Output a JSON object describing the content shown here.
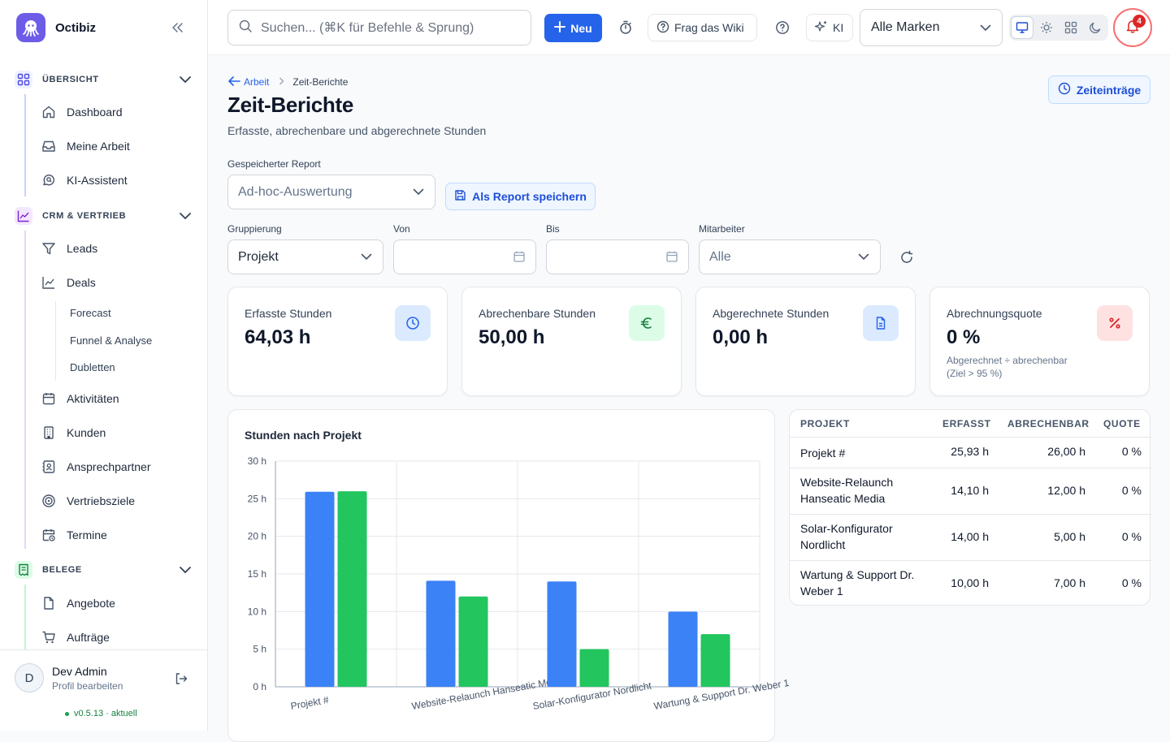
{
  "app": {
    "name": "Octibiz"
  },
  "sidebar": {
    "sections": [
      {
        "label": "ÜBERSICHT",
        "items": [
          {
            "label": "Dashboard",
            "icon": "home-icon"
          },
          {
            "label": "Meine Arbeit",
            "icon": "inbox-icon"
          },
          {
            "label": "KI-Assistent",
            "icon": "chat-search-icon"
          }
        ]
      },
      {
        "label": "CRM & VERTRIEB",
        "items": [
          {
            "label": "Leads",
            "icon": "filter-icon"
          },
          {
            "label": "Deals",
            "icon": "trend-icon"
          },
          {
            "label": "Aktivitäten",
            "icon": "calendar-icon"
          },
          {
            "label": "Kunden",
            "icon": "building-icon"
          },
          {
            "label": "Ansprechpartner",
            "icon": "contact-icon"
          },
          {
            "label": "Vertriebsziele",
            "icon": "target-icon"
          },
          {
            "label": "Termine",
            "icon": "calendar-clock-icon"
          }
        ],
        "deal_subitems": [
          "Forecast",
          "Funnel & Analyse",
          "Dubletten"
        ]
      },
      {
        "label": "BELEGE",
        "items": [
          {
            "label": "Angebote",
            "icon": "document-icon"
          },
          {
            "label": "Aufträge",
            "icon": "cart-icon"
          }
        ]
      }
    ],
    "user": {
      "name": "Dev Admin",
      "subtitle": "Profil bearbeiten",
      "initial": "D"
    },
    "version": "v0.5.13 · aktuell"
  },
  "topbar": {
    "search_placeholder": "Suchen... (⌘K für Befehle & Sprung)",
    "new_label": "Neu",
    "wiki_label": "Frag das Wiki",
    "ai_label": "KI",
    "brand_filter": "Alle Marken",
    "notifications_count": "4"
  },
  "page": {
    "breadcrumb_parent": "Arbeit",
    "breadcrumb_current": "Zeit-Berichte",
    "title": "Zeit-Berichte",
    "subtitle": "Erfasste, abrechenbare und abgerechnete Stunden",
    "time_entries_button": "Zeiteinträge"
  },
  "filters": {
    "saved_report_label": "Gespeicherter Report",
    "saved_report_value": "Ad-hoc-Auswertung",
    "save_report_button": "Als Report speichern",
    "grouping_label": "Gruppierung",
    "grouping_value": "Projekt",
    "from_label": "Von",
    "from_value": "",
    "to_label": "Bis",
    "to_value": "",
    "employee_label": "Mitarbeiter",
    "employee_value": "Alle"
  },
  "kpis": [
    {
      "title": "Erfasste Stunden",
      "value": "64,03 h",
      "sub": "",
      "icon": "clock-icon"
    },
    {
      "title": "Abrechenbare Stunden",
      "value": "50,00 h",
      "sub": "",
      "icon": "euro-icon"
    },
    {
      "title": "Abgerechnete Stunden",
      "value": "0,00 h",
      "sub": "",
      "icon": "document-icon"
    },
    {
      "title": "Abrechnungsquote",
      "value": "0 %",
      "sub": "Abgerechnet ÷ abrechenbar (Ziel > 95 %)",
      "icon": "percent-icon"
    }
  ],
  "chart_title": "Stunden nach Projekt",
  "chart_data": {
    "type": "bar",
    "title": "Stunden nach Projekt",
    "categories": [
      "Projekt #",
      "Website-Relaunch Hanseatic Media",
      "Solar-Konfigurator Nordlicht",
      "Wartung & Support Dr. Weber 1"
    ],
    "series": [
      {
        "values": [
          25.93,
          14.1,
          14.0,
          10.0
        ],
        "color": "#3b82f6"
      },
      {
        "values": [
          26.0,
          12.0,
          5.0,
          7.0
        ],
        "color": "#22c55e"
      }
    ],
    "ylim": [
      0,
      30
    ],
    "yticks": [
      "0 h",
      "5 h",
      "10 h",
      "15 h",
      "20 h",
      "25 h",
      "30 h"
    ],
    "grid": true
  },
  "table": {
    "headers": [
      "PROJEKT",
      "ERFASST",
      "ABRECHENBAR",
      "QUOTE"
    ],
    "rows": [
      {
        "project": "Projekt #",
        "tracked": "25,93 h",
        "billable": "26,00 h",
        "quote": "0 %"
      },
      {
        "project": "Website-Relaunch Hanseatic Media",
        "tracked": "14,10 h",
        "billable": "12,00 h",
        "quote": "0 %"
      },
      {
        "project": "Solar-Konfigurator Nordlicht",
        "tracked": "14,00 h",
        "billable": "5,00 h",
        "quote": "0 %"
      },
      {
        "project": "Wartung & Support Dr. Weber 1",
        "tracked": "10,00 h",
        "billable": "7,00 h",
        "quote": "0 %"
      }
    ]
  },
  "colors": {
    "primary": "#2563eb",
    "billable": "#22c55e",
    "tracked": "#3b82f6",
    "danger": "#dc2626"
  }
}
